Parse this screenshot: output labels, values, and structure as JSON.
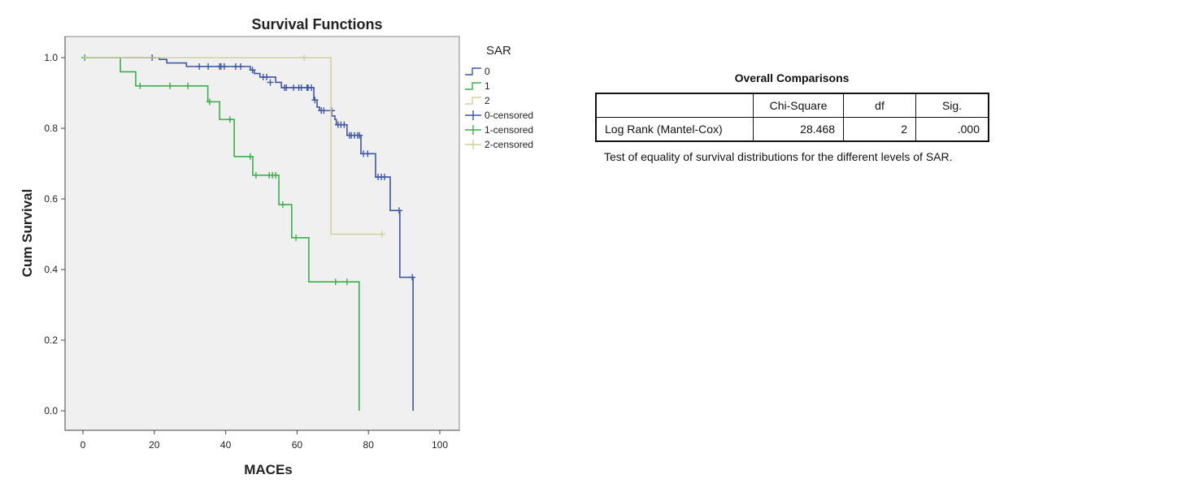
{
  "chart_data": {
    "type": "line",
    "subtype": "kaplan-meier step",
    "title": "Survival Functions",
    "xlabel": "MACEs",
    "ylabel": "Cum Survival",
    "xlim": [
      0,
      100
    ],
    "ylim": [
      0,
      1.0
    ],
    "xticks": [
      "0",
      "20",
      "40",
      "60",
      "80",
      "100"
    ],
    "yticks": [
      "0.0",
      "0.2",
      "0.4",
      "0.6",
      "0.8",
      "1.0"
    ],
    "grid": false,
    "legend_title": "SAR",
    "legend_position": "right",
    "legend": [
      "0",
      "1",
      "2",
      "0-censored",
      "1-censored",
      "2-censored"
    ],
    "series": [
      {
        "name": "0",
        "color": "#3f55a5",
        "steps": [
          [
            0,
            1.0
          ],
          [
            21.4,
            0.995
          ],
          [
            23.5,
            0.985
          ],
          [
            29,
            0.975
          ],
          [
            46.9,
            0.965
          ],
          [
            48,
            0.955
          ],
          [
            49.6,
            0.945
          ],
          [
            54,
            0.93
          ],
          [
            55.6,
            0.915
          ],
          [
            64.7,
            0.88
          ],
          [
            65.6,
            0.86
          ],
          [
            66.3,
            0.85
          ],
          [
            69.7,
            0.835
          ],
          [
            70.6,
            0.825
          ],
          [
            71,
            0.81
          ],
          [
            74,
            0.78
          ],
          [
            77.9,
            0.728
          ],
          [
            82,
            0.662
          ],
          [
            86.1,
            0.567
          ],
          [
            88.8,
            0.378
          ],
          [
            92.5,
            0.0
          ]
        ],
        "censored": [
          [
            19.4,
            1.0
          ],
          [
            32.6,
            0.975
          ],
          [
            35.1,
            0.975
          ],
          [
            38.3,
            0.975
          ],
          [
            38.7,
            0.975
          ],
          [
            39.6,
            0.975
          ],
          [
            42.8,
            0.975
          ],
          [
            44.2,
            0.975
          ],
          [
            47.5,
            0.965
          ],
          [
            50.5,
            0.945
          ],
          [
            51.5,
            0.945
          ],
          [
            52.5,
            0.93
          ],
          [
            56.5,
            0.915
          ],
          [
            57,
            0.915
          ],
          [
            59,
            0.915
          ],
          [
            60.5,
            0.915
          ],
          [
            61.2,
            0.915
          ],
          [
            62.8,
            0.915
          ],
          [
            63.1,
            0.915
          ],
          [
            64,
            0.915
          ],
          [
            65,
            0.88
          ],
          [
            66.8,
            0.85
          ],
          [
            67.5,
            0.85
          ],
          [
            69.7,
            0.85
          ],
          [
            71.5,
            0.81
          ],
          [
            72.3,
            0.81
          ],
          [
            73.2,
            0.81
          ],
          [
            74.7,
            0.78
          ],
          [
            75.2,
            0.78
          ],
          [
            76.1,
            0.78
          ],
          [
            77,
            0.78
          ],
          [
            77.5,
            0.78
          ],
          [
            78.6,
            0.728
          ],
          [
            79.8,
            0.728
          ],
          [
            82.7,
            0.662
          ],
          [
            83.6,
            0.662
          ],
          [
            84.5,
            0.662
          ],
          [
            88.6,
            0.567
          ],
          [
            92.3,
            0.378
          ]
        ]
      },
      {
        "name": "1",
        "color": "#3cae4c",
        "steps": [
          [
            0,
            1.0
          ],
          [
            10.5,
            0.96
          ],
          [
            14.8,
            0.92
          ],
          [
            35,
            0.875
          ],
          [
            38.3,
            0.825
          ],
          [
            42.4,
            0.72
          ],
          [
            47.6,
            0.667
          ],
          [
            54.9,
            0.584
          ],
          [
            58.5,
            0.49
          ],
          [
            63.3,
            0.365
          ],
          [
            77.4,
            0.0
          ]
        ],
        "censored": [
          [
            0.5,
            1.0
          ],
          [
            16,
            0.92
          ],
          [
            24.4,
            0.92
          ],
          [
            29.4,
            0.92
          ],
          [
            35.5,
            0.875
          ],
          [
            41.2,
            0.825
          ],
          [
            46.9,
            0.72
          ],
          [
            48.5,
            0.667
          ],
          [
            52.2,
            0.667
          ],
          [
            53.1,
            0.667
          ],
          [
            54,
            0.667
          ],
          [
            56,
            0.584
          ],
          [
            59.7,
            0.49
          ],
          [
            70.8,
            0.365
          ],
          [
            74,
            0.365
          ]
        ]
      },
      {
        "name": "2",
        "color": "#d3d09c",
        "steps": [
          [
            0,
            1.0
          ],
          [
            69.5,
            0.5
          ]
        ],
        "end": 84,
        "censored": [
          [
            62,
            1.0
          ],
          [
            83.8,
            0.5
          ]
        ]
      }
    ]
  },
  "table": {
    "title": "Overall Comparisons",
    "headers": [
      "",
      "Chi-Square",
      "df",
      "Sig."
    ],
    "rows": [
      [
        "Log Rank (Mantel-Cox)",
        "28.468",
        "2",
        ".000"
      ]
    ],
    "note": "Test of equality of survival distributions for the different levels of SAR."
  }
}
